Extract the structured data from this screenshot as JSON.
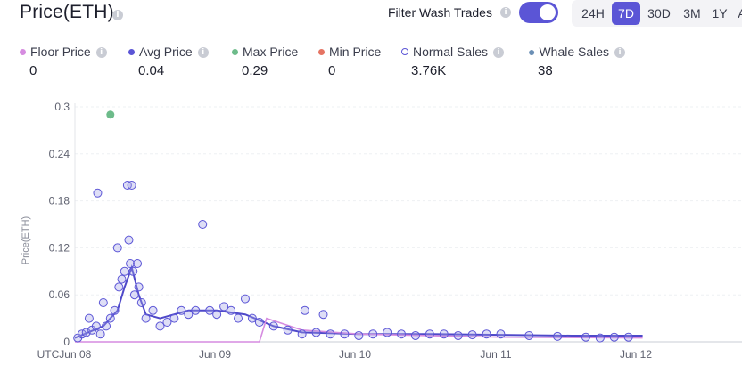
{
  "header": {
    "title": "Price(ETH)",
    "filter_label": "Filter Wash Trades",
    "filter_on": true
  },
  "ranges": [
    {
      "label": "24H",
      "active": false
    },
    {
      "label": "7D",
      "active": true
    },
    {
      "label": "30D",
      "active": false
    },
    {
      "label": "3M",
      "active": false
    },
    {
      "label": "1Y",
      "active": false
    },
    {
      "label": "A",
      "active": false
    }
  ],
  "stats": [
    {
      "label": "Floor Price",
      "value": "0",
      "color": "#d68ce0",
      "marker": "dot"
    },
    {
      "label": "Avg Price",
      "value": "0.04",
      "color": "#5b55d6",
      "marker": "dot"
    },
    {
      "label": "Max Price",
      "value": "0.29",
      "color": "#6dbb8a",
      "marker": "dot"
    },
    {
      "label": "Min Price",
      "value": "0",
      "color": "#e57463",
      "marker": "dot"
    },
    {
      "label": "Normal Sales",
      "value": "3.76K",
      "color": "#5b55d6",
      "marker": "ring"
    },
    {
      "label": "Whale Sales",
      "value": "38",
      "color": "#6b8fb5",
      "marker": "whale"
    }
  ],
  "chart_data": {
    "type": "scatter",
    "ylabel": "Price(ETH)",
    "ylim": [
      0,
      0.3
    ],
    "yticks": [
      "0",
      "0.06",
      "0.12",
      "0.18",
      "0.24",
      "0.3"
    ],
    "xticks": [
      "UTCJun 08",
      "Jun 09",
      "Jun 10",
      "Jun 11",
      "Jun 12"
    ],
    "max_point": {
      "x": 0.25,
      "y": 0.29
    },
    "series": [
      {
        "name": "Normal Sales",
        "points": [
          [
            0.02,
            0.005
          ],
          [
            0.05,
            0.01
          ],
          [
            0.08,
            0.012
          ],
          [
            0.1,
            0.03
          ],
          [
            0.12,
            0.015
          ],
          [
            0.15,
            0.02
          ],
          [
            0.16,
            0.19
          ],
          [
            0.18,
            0.01
          ],
          [
            0.2,
            0.05
          ],
          [
            0.22,
            0.02
          ],
          [
            0.25,
            0.03
          ],
          [
            0.28,
            0.04
          ],
          [
            0.3,
            0.12
          ],
          [
            0.31,
            0.07
          ],
          [
            0.33,
            0.08
          ],
          [
            0.35,
            0.09
          ],
          [
            0.37,
            0.2
          ],
          [
            0.38,
            0.13
          ],
          [
            0.39,
            0.1
          ],
          [
            0.4,
            0.2
          ],
          [
            0.41,
            0.09
          ],
          [
            0.42,
            0.06
          ],
          [
            0.44,
            0.1
          ],
          [
            0.45,
            0.07
          ],
          [
            0.47,
            0.05
          ],
          [
            0.5,
            0.03
          ],
          [
            0.55,
            0.04
          ],
          [
            0.6,
            0.02
          ],
          [
            0.65,
            0.025
          ],
          [
            0.7,
            0.03
          ],
          [
            0.75,
            0.04
          ],
          [
            0.8,
            0.035
          ],
          [
            0.85,
            0.04
          ],
          [
            0.9,
            0.15
          ],
          [
            0.95,
            0.04
          ],
          [
            1.0,
            0.035
          ],
          [
            1.05,
            0.045
          ],
          [
            1.1,
            0.04
          ],
          [
            1.15,
            0.03
          ],
          [
            1.2,
            0.055
          ],
          [
            1.25,
            0.03
          ],
          [
            1.3,
            0.025
          ],
          [
            1.4,
            0.02
          ],
          [
            1.5,
            0.015
          ],
          [
            1.6,
            0.01
          ],
          [
            1.62,
            0.04
          ],
          [
            1.7,
            0.012
          ],
          [
            1.75,
            0.035
          ],
          [
            1.8,
            0.01
          ],
          [
            1.9,
            0.01
          ],
          [
            2.0,
            0.008
          ],
          [
            2.1,
            0.01
          ],
          [
            2.2,
            0.012
          ],
          [
            2.3,
            0.01
          ],
          [
            2.4,
            0.008
          ],
          [
            2.5,
            0.01
          ],
          [
            2.6,
            0.01
          ],
          [
            2.7,
            0.008
          ],
          [
            2.8,
            0.009
          ],
          [
            2.9,
            0.01
          ],
          [
            3.0,
            0.01
          ],
          [
            3.2,
            0.008
          ],
          [
            3.4,
            0.007
          ],
          [
            3.6,
            0.006
          ],
          [
            3.7,
            0.005
          ],
          [
            3.8,
            0.006
          ],
          [
            3.9,
            0.006
          ]
        ]
      },
      {
        "name": "Avg Price",
        "points": [
          [
            0.0,
            0.005
          ],
          [
            0.2,
            0.02
          ],
          [
            0.3,
            0.04
          ],
          [
            0.35,
            0.07
          ],
          [
            0.4,
            0.095
          ],
          [
            0.45,
            0.06
          ],
          [
            0.5,
            0.035
          ],
          [
            0.6,
            0.03
          ],
          [
            0.8,
            0.04
          ],
          [
            1.0,
            0.04
          ],
          [
            1.2,
            0.035
          ],
          [
            1.4,
            0.02
          ],
          [
            1.6,
            0.012
          ],
          [
            2.0,
            0.01
          ],
          [
            2.5,
            0.01
          ],
          [
            3.0,
            0.009
          ],
          [
            3.5,
            0.008
          ],
          [
            4.0,
            0.008
          ]
        ]
      },
      {
        "name": "Floor Price",
        "points": [
          [
            0.0,
            0
          ],
          [
            1.3,
            0
          ],
          [
            1.35,
            0.03
          ],
          [
            1.6,
            0.015
          ],
          [
            2.0,
            0.01
          ],
          [
            3.0,
            0.006
          ],
          [
            4.0,
            0.005
          ]
        ]
      }
    ]
  }
}
